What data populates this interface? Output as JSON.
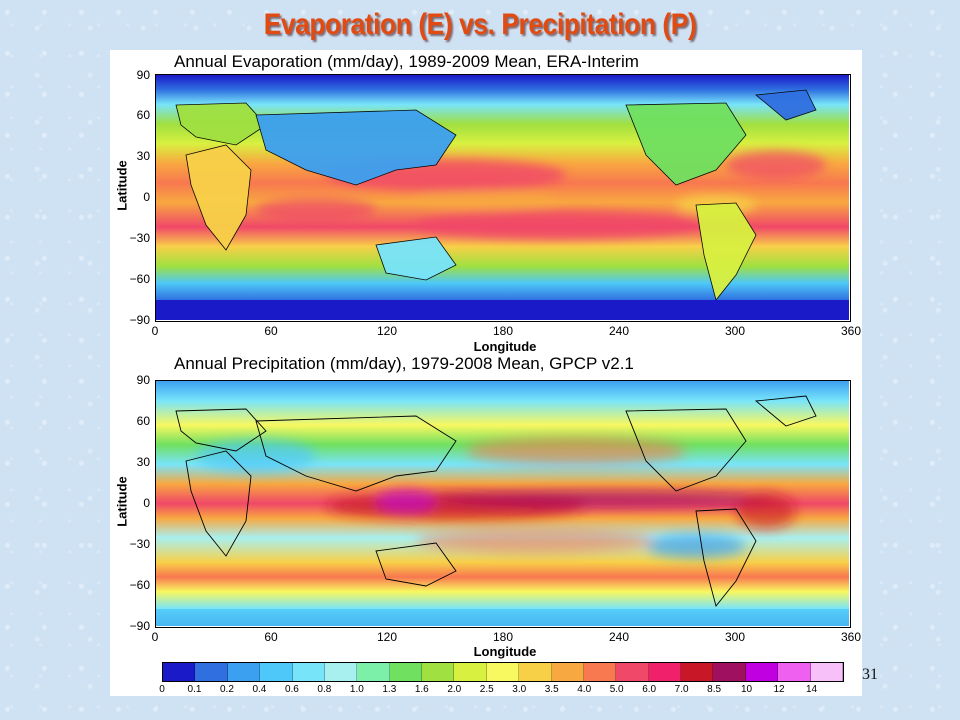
{
  "slide": {
    "title": "Evaporation (E) vs. Precipitation (P)",
    "page_number": "31"
  },
  "panels": [
    {
      "title": "Annual Evaporation (mm/day), 1989-2009 Mean, ERA-Interim",
      "ylabel": "Latitude",
      "xlabel": "Longitude",
      "yticks": [
        "90",
        "60",
        "30",
        "0",
        "−30",
        "−60",
        "−90"
      ],
      "xticks": [
        "0",
        "60",
        "120",
        "180",
        "240",
        "300",
        "360"
      ]
    },
    {
      "title": "Annual Precipitation (mm/day), 1979-2008 Mean, GPCP v2.1",
      "ylabel": "Latitude",
      "xlabel": "Longitude",
      "yticks": [
        "90",
        "60",
        "30",
        "0",
        "−30",
        "−60",
        "−90"
      ],
      "xticks": [
        "0",
        "60",
        "120",
        "180",
        "240",
        "300",
        "360"
      ]
    }
  ],
  "colorbar": {
    "levels": [
      "0",
      "0.1",
      "0.2",
      "0.4",
      "0.6",
      "0.8",
      "1.0",
      "1.3",
      "1.6",
      "2.0",
      "2.5",
      "3.0",
      "3.5",
      "4.0",
      "5.0",
      "6.0",
      "7.0",
      "8.5",
      "10",
      "12",
      "14"
    ],
    "colors": [
      "#1a1ac8",
      "#2f6fe0",
      "#3ca0f0",
      "#4ec8f8",
      "#78e4fa",
      "#a8f0f0",
      "#7cf0a8",
      "#70e060",
      "#a0e040",
      "#d8f040",
      "#f8f860",
      "#f8d048",
      "#f8a840",
      "#f87850",
      "#f04868",
      "#f0206a",
      "#c81828",
      "#a01060",
      "#c000e0",
      "#f060f0",
      "#f8c0f8"
    ]
  }
}
